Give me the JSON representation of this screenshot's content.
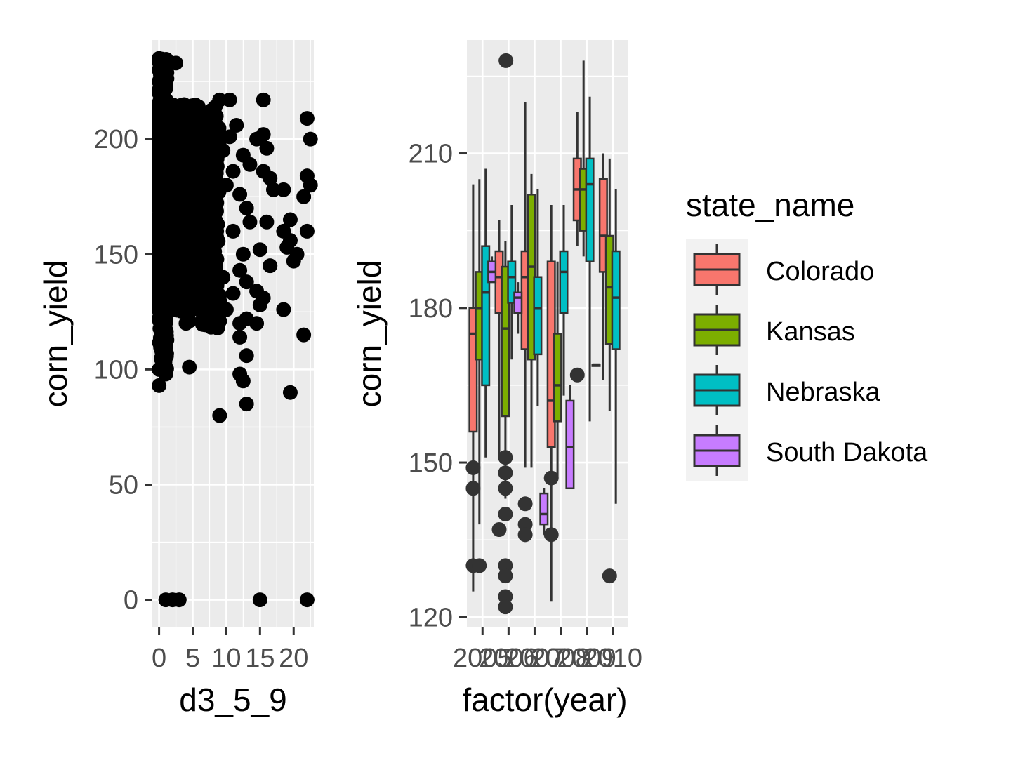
{
  "chart_data": [
    {
      "type": "scatter",
      "xlabel": "d3_5_9",
      "ylabel": "corn_yield",
      "xlim": [
        -1,
        23
      ],
      "ylim": [
        -12,
        243
      ],
      "xticks": [
        0,
        5,
        10,
        15,
        20
      ],
      "xtick_labels": [
        "0",
        "5",
        "10",
        "15",
        "20"
      ],
      "yticks": [
        0,
        50,
        100,
        150,
        200
      ],
      "ytick_labels": [
        "0",
        "50",
        "100",
        "150",
        "200"
      ],
      "grid": true,
      "point_color": "#000000",
      "points": [
        {
          "x": 0,
          "y": 235
        },
        {
          "x": 0,
          "y": 230
        },
        {
          "x": 0,
          "y": 225
        },
        {
          "x": 0,
          "y": 220
        },
        {
          "x": 0,
          "y": 215
        },
        {
          "x": 1,
          "y": 222
        },
        {
          "x": 2.5,
          "y": 233
        },
        {
          "x": 0,
          "y": 100
        },
        {
          "x": 0,
          "y": 93
        },
        {
          "x": 1,
          "y": 98
        },
        {
          "x": 1,
          "y": 110
        },
        {
          "x": 1,
          "y": 0
        },
        {
          "x": 2,
          "y": 0
        },
        {
          "x": 3,
          "y": 0
        },
        {
          "x": 15,
          "y": 0
        },
        {
          "x": 22,
          "y": 0
        },
        {
          "x": 4.5,
          "y": 101
        },
        {
          "x": 9,
          "y": 80
        },
        {
          "x": 13,
          "y": 85
        },
        {
          "x": 19.5,
          "y": 90
        },
        {
          "x": 12.5,
          "y": 95
        },
        {
          "x": 12,
          "y": 98
        },
        {
          "x": 13,
          "y": 106
        },
        {
          "x": 12,
          "y": 114
        },
        {
          "x": 12,
          "y": 120
        },
        {
          "x": 13,
          "y": 122
        },
        {
          "x": 14.5,
          "y": 120
        },
        {
          "x": 4,
          "y": 120
        },
        {
          "x": 4.5,
          "y": 121
        },
        {
          "x": 7.5,
          "y": 120
        },
        {
          "x": 9,
          "y": 121
        },
        {
          "x": 21.5,
          "y": 115
        },
        {
          "x": 18.5,
          "y": 126
        },
        {
          "x": 10,
          "y": 126
        },
        {
          "x": 15,
          "y": 128
        },
        {
          "x": 15.5,
          "y": 131
        },
        {
          "x": 14.5,
          "y": 134
        },
        {
          "x": 13,
          "y": 138
        },
        {
          "x": 16.5,
          "y": 145
        },
        {
          "x": 20,
          "y": 147
        },
        {
          "x": 15,
          "y": 152
        },
        {
          "x": 19,
          "y": 153
        },
        {
          "x": 19.5,
          "y": 156
        },
        {
          "x": 20.5,
          "y": 150
        },
        {
          "x": 22,
          "y": 160
        },
        {
          "x": 18.5,
          "y": 160
        },
        {
          "x": 16,
          "y": 164
        },
        {
          "x": 19.5,
          "y": 165
        },
        {
          "x": 21.5,
          "y": 175
        },
        {
          "x": 17,
          "y": 178
        },
        {
          "x": 18.5,
          "y": 178
        },
        {
          "x": 16.5,
          "y": 183
        },
        {
          "x": 22,
          "y": 184
        },
        {
          "x": 22.5,
          "y": 180
        },
        {
          "x": 15.5,
          "y": 186
        },
        {
          "x": 13.5,
          "y": 189
        },
        {
          "x": 16,
          "y": 196
        },
        {
          "x": 14.5,
          "y": 200
        },
        {
          "x": 15.5,
          "y": 202
        },
        {
          "x": 22,
          "y": 209
        },
        {
          "x": 22.5,
          "y": 200
        },
        {
          "x": 15.5,
          "y": 217
        },
        {
          "x": 9,
          "y": 217
        },
        {
          "x": 10.5,
          "y": 217
        },
        {
          "x": 11.5,
          "y": 206
        },
        {
          "x": 8.5,
          "y": 210
        },
        {
          "x": 6.5,
          "y": 210
        },
        {
          "x": 3.5,
          "y": 212
        },
        {
          "x": 5.5,
          "y": 208
        },
        {
          "x": 10.5,
          "y": 201
        },
        {
          "x": 12.5,
          "y": 193
        },
        {
          "x": 11,
          "y": 186
        },
        {
          "x": 13,
          "y": 170
        },
        {
          "x": 12,
          "y": 176
        },
        {
          "x": 11,
          "y": 160
        },
        {
          "x": 13.5,
          "y": 164
        },
        {
          "x": 12.5,
          "y": 150
        },
        {
          "x": 12,
          "y": 143
        },
        {
          "x": 11,
          "y": 133
        },
        {
          "x": 9.5,
          "y": 140
        },
        {
          "x": 10,
          "y": 180
        },
        {
          "x": 9.5,
          "y": 195
        },
        {
          "x": 8,
          "y": 175
        },
        {
          "x": 7.5,
          "y": 160
        },
        {
          "x": 6.5,
          "y": 145
        },
        {
          "x": 6,
          "y": 190
        },
        {
          "x": 5,
          "y": 170
        },
        {
          "x": 4,
          "y": 150
        },
        {
          "x": 3,
          "y": 135
        },
        {
          "x": 2.5,
          "y": 200
        },
        {
          "x": 2,
          "y": 165
        },
        {
          "x": 1.5,
          "y": 185
        },
        {
          "x": 1,
          "y": 145
        },
        {
          "x": 0.5,
          "y": 175
        },
        {
          "x": 0.5,
          "y": 128
        }
      ]
    },
    {
      "type": "box",
      "xlabel": "factor(year)",
      "ylabel": "corn_yield",
      "ylim": [
        118,
        232
      ],
      "yticks": [
        120,
        150,
        180,
        210
      ],
      "ytick_labels": [
        "120",
        "150",
        "180",
        "210"
      ],
      "categories": [
        "2005",
        "2006",
        "2007",
        "2008",
        "2009",
        "2010"
      ],
      "legend_title": "state_name",
      "legend_position": "right",
      "series": [
        {
          "name": "Colorado",
          "color": "#F8766D",
          "boxes": [
            {
              "category": "2005",
              "min": 125,
              "q1": 156,
              "median": 175,
              "q3": 180,
              "max": 204,
              "outliers": [
                149,
                145,
                130
              ]
            },
            {
              "category": "2006",
              "min": 151,
              "q1": 179,
              "median": 186,
              "q3": 191,
              "max": 197,
              "outliers": [
                137
              ]
            },
            {
              "category": "2007",
              "min": 149,
              "q1": 172,
              "median": 186,
              "q3": 191,
              "max": 220,
              "outliers": [
                142,
                138,
                136
              ]
            },
            {
              "category": "2008",
              "min": 123,
              "q1": 153,
              "median": 162,
              "q3": 189,
              "max": 200,
              "outliers": [
                147,
                136
              ]
            },
            {
              "category": "2009",
              "min": 192,
              "q1": 197,
              "median": 203,
              "q3": 209,
              "max": 218,
              "outliers": [
                167
              ]
            },
            {
              "category": "2010",
              "min": 166,
              "q1": 187,
              "median": 194,
              "q3": 205,
              "max": 210,
              "outliers": []
            }
          ]
        },
        {
          "name": "Kansas",
          "color": "#7CAE00",
          "boxes": [
            {
              "category": "2005",
              "min": 138,
              "q1": 170,
              "median": 180,
              "q3": 187,
              "max": 205,
              "outliers": [
                130
              ]
            },
            {
              "category": "2006",
              "min": 143,
              "q1": 159,
              "median": 176,
              "q3": 188,
              "max": 193,
              "outliers": [
                151,
                148,
                145,
                140,
                130,
                128,
                124,
                122
              ]
            },
            {
              "category": "2007",
              "min": 149,
              "q1": 170,
              "median": 188,
              "q3": 202,
              "max": 206,
              "outliers": []
            },
            {
              "category": "2008",
              "min": 147,
              "q1": 158,
              "median": 165,
              "q3": 175,
              "max": 189,
              "outliers": []
            },
            {
              "category": "2009",
              "min": 190,
              "q1": 195,
              "median": 203,
              "q3": 207,
              "max": 228,
              "outliers": []
            },
            {
              "category": "2010",
              "min": 160,
              "q1": 173,
              "median": 184,
              "q3": 194,
              "max": 209,
              "outliers": [
                128
              ]
            }
          ]
        },
        {
          "name": "Nebraska",
          "color": "#00BFC4",
          "boxes": [
            {
              "category": "2005",
              "min": 151,
              "q1": 165,
              "median": 183,
              "q3": 192,
              "max": 207,
              "outliers": []
            },
            {
              "category": "2006",
              "min": 170,
              "q1": 181,
              "median": 186,
              "q3": 189,
              "max": 200,
              "outliers": []
            },
            {
              "category": "2007",
              "min": 161,
              "q1": 171,
              "median": 180,
              "q3": 186,
              "max": 203,
              "outliers": []
            },
            {
              "category": "2008",
              "min": 163,
              "q1": 179,
              "median": 187,
              "q3": 191,
              "max": 200,
              "outliers": []
            },
            {
              "category": "2009",
              "min": 158,
              "q1": 189,
              "median": 204,
              "q3": 209,
              "max": 221,
              "outliers": []
            },
            {
              "category": "2010",
              "min": 142,
              "q1": 172,
              "median": 182,
              "q3": 191,
              "max": 203,
              "outliers": []
            }
          ]
        },
        {
          "name": "South Dakota",
          "color": "#C77CFF",
          "boxes": [
            {
              "category": "2005",
              "min": 185,
              "q1": 185,
              "median": 187,
              "q3": 189,
              "max": 190,
              "outliers": []
            },
            {
              "category": "2006",
              "min": 175,
              "q1": 179,
              "median": 182,
              "q3": 183,
              "max": 185,
              "outliers": []
            },
            {
              "category": "2007",
              "min": 136,
              "q1": 138,
              "median": 140,
              "q3": 144,
              "max": 145,
              "outliers": []
            },
            {
              "category": "2008",
              "min": 145,
              "q1": 145,
              "median": 153,
              "q3": 162,
              "max": 165,
              "outliers": []
            },
            {
              "category": "2009",
              "min": 169,
              "q1": 169,
              "median": 169,
              "q3": 169,
              "max": 169,
              "outliers": []
            }
          ]
        }
      ]
    }
  ]
}
